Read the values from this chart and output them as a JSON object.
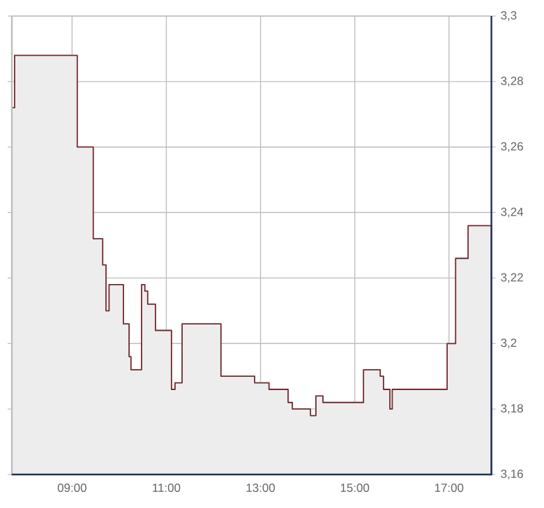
{
  "chart_data": {
    "type": "area",
    "color": "#722a2e",
    "x": [
      7.722,
      7.78,
      9.11,
      9.45,
      9.65,
      9.72,
      9.785,
      10.09,
      10.21,
      10.25,
      10.475,
      10.545,
      10.605,
      10.77,
      11.11,
      11.185,
      11.335,
      12.16,
      12.875,
      13.18,
      13.585,
      13.675,
      14.06,
      14.175,
      14.325,
      15.185,
      15.54,
      15.61,
      15.745,
      15.795,
      16.96,
      17.14,
      17.405,
      17.9
    ],
    "values": [
      3.272,
      3.288,
      3.26,
      3.232,
      3.224,
      3.21,
      3.218,
      3.206,
      3.196,
      3.192,
      3.218,
      3.216,
      3.212,
      3.204,
      3.186,
      3.188,
      3.206,
      3.19,
      3.188,
      3.186,
      3.182,
      3.18,
      3.178,
      3.184,
      3.182,
      3.192,
      3.19,
      3.186,
      3.18,
      3.186,
      3.2,
      3.226,
      3.236,
      3.236
    ],
    "xlim": [
      7.722,
      17.9
    ],
    "xticks": [
      {
        "value": 9,
        "label": "09:00"
      },
      {
        "value": 11,
        "label": "11:00"
      },
      {
        "value": 13,
        "label": "13:00"
      },
      {
        "value": 15,
        "label": "15:00"
      },
      {
        "value": 17,
        "label": "17:00"
      }
    ],
    "ylim": [
      3.16,
      3.3
    ],
    "yticks": [
      {
        "value": 3.16,
        "label": "3,16"
      },
      {
        "value": 3.18,
        "label": "3,18"
      },
      {
        "value": 3.2,
        "label": "3,2"
      },
      {
        "value": 3.22,
        "label": "3,22"
      },
      {
        "value": 3.24,
        "label": "3,24"
      },
      {
        "value": 3.26,
        "label": "3,26"
      },
      {
        "value": 3.28,
        "label": "3,28"
      },
      {
        "value": 3.3,
        "label": "3,3"
      }
    ],
    "grid": true
  }
}
